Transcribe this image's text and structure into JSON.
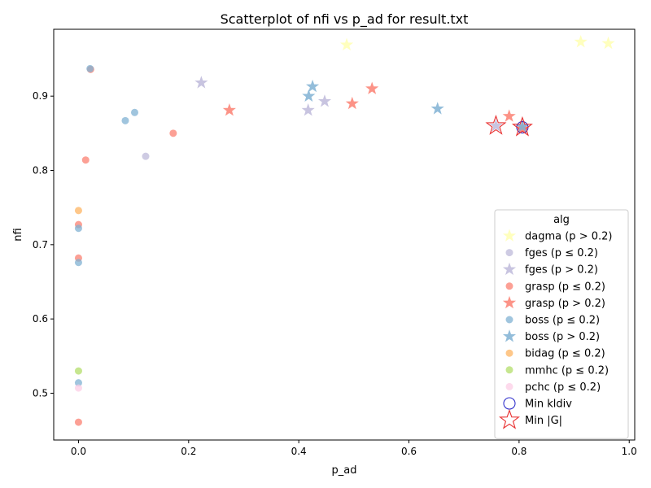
{
  "chart_data": {
    "type": "scatter",
    "title": "Scatterplot of nfi vs p_ad for result.txt",
    "xlabel": "p_ad",
    "ylabel": "nfi",
    "xlim": [
      -0.045,
      1.01
    ],
    "ylim": [
      0.437,
      0.99
    ],
    "xticks": [
      "0.0",
      "0.2",
      "0.4",
      "0.6",
      "0.8",
      "1.0"
    ],
    "xtick_values": [
      0.0,
      0.2,
      0.4,
      0.6,
      0.8,
      1.0
    ],
    "yticks": [
      "0.5",
      "0.6",
      "0.7",
      "0.8",
      "0.9"
    ],
    "ytick_values": [
      0.5,
      0.6,
      0.7,
      0.8,
      0.9
    ],
    "grid": false,
    "legend": {
      "title": "alg",
      "placement": "lower-right"
    },
    "series": [
      {
        "name": "dagma (p > 0.2)",
        "marker": "star",
        "color": "#ffffb3",
        "points": [
          [
            0.487,
            0.969
          ],
          [
            0.912,
            0.973
          ],
          [
            0.962,
            0.971
          ]
        ]
      },
      {
        "name": "fges (p ≤ 0.2)",
        "marker": "circle",
        "color": "#bebada",
        "points": [
          [
            0.122,
            0.819
          ]
        ]
      },
      {
        "name": "fges (p > 0.2)",
        "marker": "star",
        "color": "#bebada",
        "points": [
          [
            0.223,
            0.918
          ],
          [
            0.417,
            0.881
          ],
          [
            0.447,
            0.893
          ],
          [
            0.758,
            0.86
          ],
          [
            0.806,
            0.858
          ]
        ]
      },
      {
        "name": "grasp (p ≤ 0.2)",
        "marker": "circle",
        "color": "#fb8072",
        "points": [
          [
            0.022,
            0.936
          ],
          [
            0.013,
            0.814
          ],
          [
            0.172,
            0.85
          ],
          [
            0.0,
            0.727
          ],
          [
            0.0,
            0.682
          ],
          [
            0.0,
            0.461
          ]
        ]
      },
      {
        "name": "grasp (p > 0.2)",
        "marker": "star",
        "color": "#fb8072",
        "points": [
          [
            0.274,
            0.881
          ],
          [
            0.497,
            0.89
          ],
          [
            0.533,
            0.91
          ],
          [
            0.782,
            0.873
          ],
          [
            0.806,
            0.856
          ]
        ]
      },
      {
        "name": "boss (p ≤ 0.2)",
        "marker": "circle",
        "color": "#80b1d3",
        "points": [
          [
            0.021,
            0.937
          ],
          [
            0.085,
            0.867
          ],
          [
            0.102,
            0.878
          ],
          [
            0.0,
            0.722
          ],
          [
            0.0,
            0.676
          ],
          [
            0.0,
            0.514
          ]
        ]
      },
      {
        "name": "boss (p > 0.2)",
        "marker": "star",
        "color": "#80b1d3",
        "points": [
          [
            0.418,
            0.9
          ],
          [
            0.425,
            0.913
          ],
          [
            0.652,
            0.883
          ],
          [
            0.806,
            0.859
          ]
        ]
      },
      {
        "name": "bidag (p ≤ 0.2)",
        "marker": "circle",
        "color": "#fdb462",
        "points": [
          [
            0.0,
            0.746
          ]
        ]
      },
      {
        "name": "mmhc (p ≤ 0.2)",
        "marker": "circle",
        "color": "#b3de69",
        "points": [
          [
            0.0,
            0.53
          ]
        ]
      },
      {
        "name": "pchc (p ≤ 0.2)",
        "marker": "circle",
        "color": "#fccde5",
        "points": [
          [
            0.0,
            0.507
          ]
        ]
      }
    ],
    "highlights": [
      {
        "name": "Min kldiv",
        "marker": "open-circle",
        "color": "#3333cc",
        "points": [
          [
            0.806,
            0.858
          ]
        ]
      },
      {
        "name": "Min |G|",
        "marker": "open-star",
        "color": "#e83030",
        "points": [
          [
            0.758,
            0.86
          ],
          [
            0.806,
            0.858
          ]
        ]
      }
    ]
  }
}
